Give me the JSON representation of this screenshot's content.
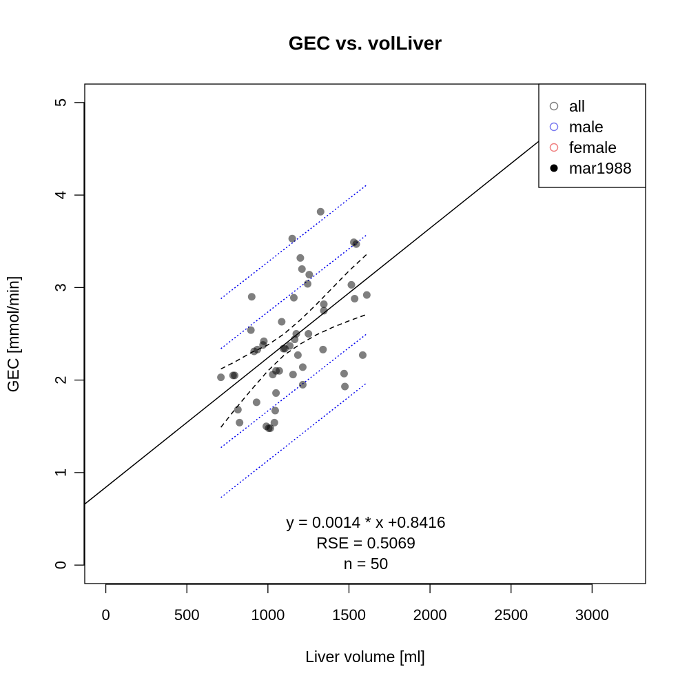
{
  "chart_data": {
    "type": "scatter",
    "title": "GEC vs. volLiver",
    "xlabel": "Liver volume [ml]",
    "ylabel": "GEC [mmol/min]",
    "xlim": [
      -130,
      3330
    ],
    "ylim": [
      -0.2,
      5.2
    ],
    "x_ticks": [
      0,
      500,
      1000,
      1500,
      2000,
      2500,
      3000
    ],
    "y_ticks": [
      0,
      1,
      2,
      3,
      4,
      5
    ],
    "grid": false,
    "legend": {
      "position": "top-right",
      "entries": [
        {
          "label": "all",
          "marker": "open-circle",
          "color": "#808080"
        },
        {
          "label": "male",
          "marker": "open-circle",
          "color": "#7a7af0"
        },
        {
          "label": "female",
          "marker": "open-circle",
          "color": "#f08080"
        },
        {
          "label": "mar1988",
          "marker": "filled-circle",
          "color": "#000000"
        }
      ]
    },
    "series": [
      {
        "name": "mar1988",
        "points": [
          [
            710,
            2.03
          ],
          [
            785,
            2.05
          ],
          [
            795,
            2.05
          ],
          [
            815,
            1.68
          ],
          [
            825,
            1.54
          ],
          [
            895,
            2.54
          ],
          [
            900,
            2.9
          ],
          [
            915,
            2.31
          ],
          [
            930,
            1.76
          ],
          [
            935,
            2.33
          ],
          [
            970,
            2.38
          ],
          [
            975,
            2.42
          ],
          [
            990,
            1.5
          ],
          [
            1005,
            1.48
          ],
          [
            1015,
            1.48
          ],
          [
            1030,
            2.06
          ],
          [
            1040,
            1.54
          ],
          [
            1045,
            1.67
          ],
          [
            1050,
            2.1
          ],
          [
            1050,
            1.86
          ],
          [
            1070,
            2.1
          ],
          [
            1085,
            2.63
          ],
          [
            1095,
            2.34
          ],
          [
            1105,
            2.34
          ],
          [
            1135,
            2.37
          ],
          [
            1150,
            3.53
          ],
          [
            1155,
            2.06
          ],
          [
            1160,
            2.89
          ],
          [
            1165,
            2.44
          ],
          [
            1175,
            2.5
          ],
          [
            1185,
            2.27
          ],
          [
            1200,
            3.32
          ],
          [
            1210,
            3.2
          ],
          [
            1215,
            2.14
          ],
          [
            1215,
            1.95
          ],
          [
            1245,
            3.04
          ],
          [
            1250,
            2.5
          ],
          [
            1255,
            3.14
          ],
          [
            1325,
            3.82
          ],
          [
            1340,
            2.33
          ],
          [
            1345,
            2.82
          ],
          [
            1345,
            2.75
          ],
          [
            1470,
            2.07
          ],
          [
            1475,
            1.93
          ],
          [
            1515,
            3.03
          ],
          [
            1530,
            3.49
          ],
          [
            1535,
            2.88
          ],
          [
            1545,
            3.47
          ],
          [
            1585,
            2.27
          ],
          [
            1610,
            2.92
          ]
        ]
      }
    ],
    "regression": {
      "slope": 0.0014,
      "intercept": 0.8416
    },
    "confidence_band": {
      "x": [
        710,
        800,
        900,
        1000,
        1100,
        1200,
        1300,
        1400,
        1500,
        1610
      ],
      "lower": [
        1.49,
        1.69,
        1.9,
        2.1,
        2.27,
        2.39,
        2.49,
        2.57,
        2.64,
        2.71
      ],
      "upper": [
        2.12,
        2.2,
        2.3,
        2.38,
        2.5,
        2.65,
        2.82,
        3.0,
        3.18,
        3.36
      ]
    },
    "prediction_band_inner": {
      "x": [
        710,
        1610
      ],
      "lower": [
        1.27,
        2.5
      ],
      "upper": [
        2.34,
        3.57
      ]
    },
    "prediction_band_outer": {
      "x": [
        710,
        1610
      ],
      "lower": [
        0.73,
        1.97
      ],
      "upper": [
        2.88,
        4.11
      ]
    },
    "annotations": [
      "y = 0.0014 * x +0.8416",
      "RSE = 0.5069",
      "n = 50"
    ]
  }
}
